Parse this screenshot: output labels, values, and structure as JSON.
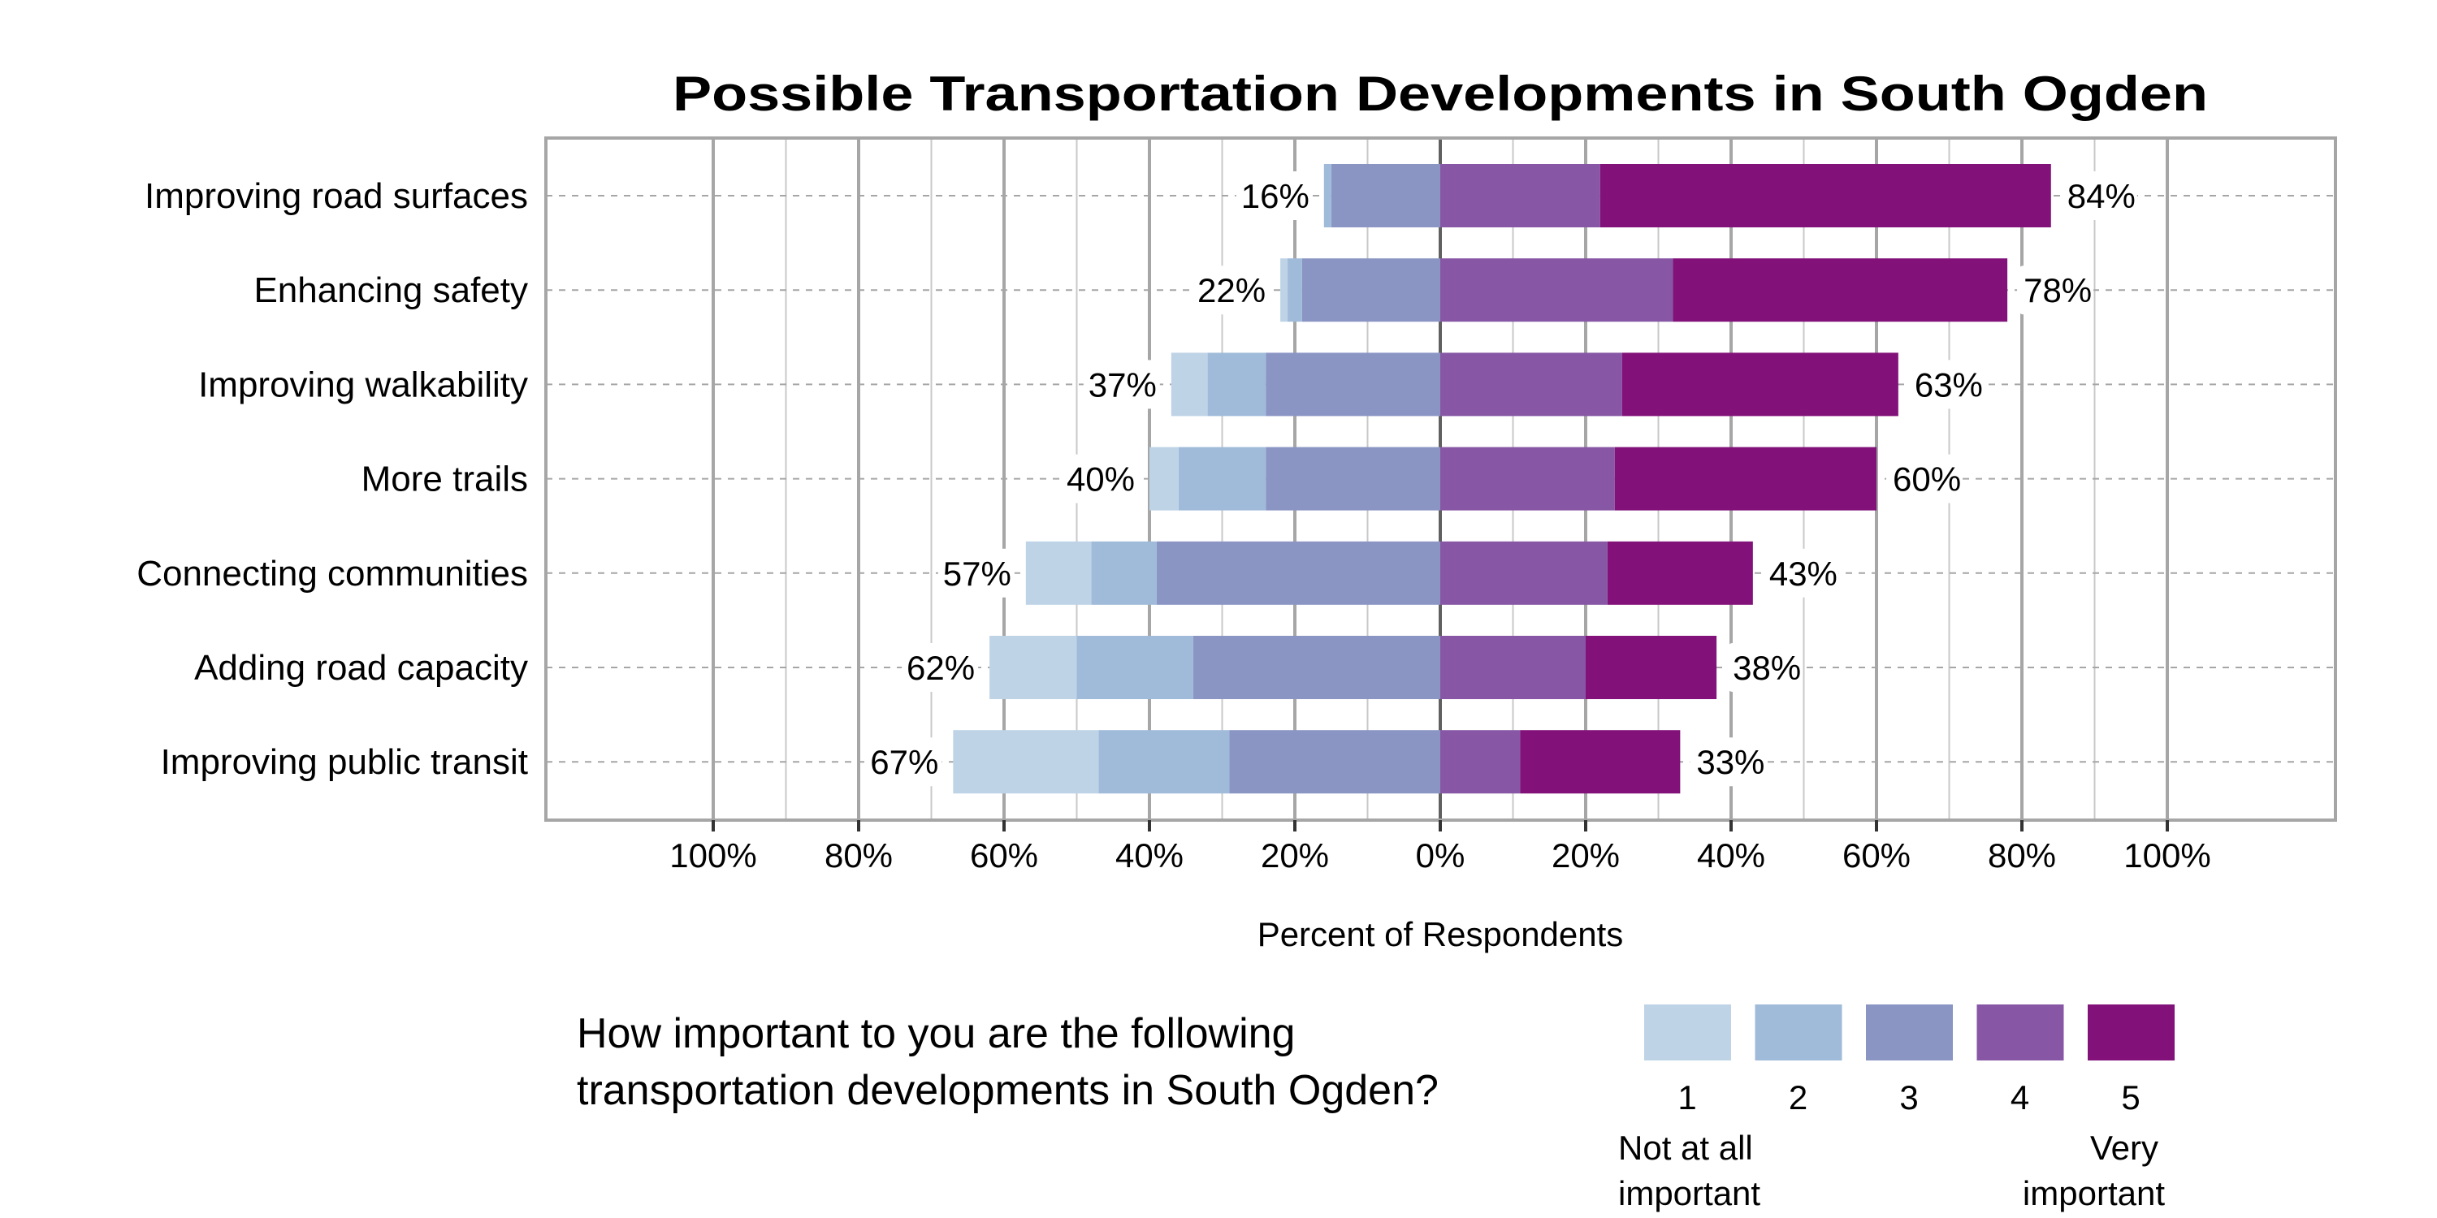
{
  "chart_data": {
    "type": "bar",
    "orientation": "horizontal",
    "stacking": "diverging",
    "title": "Possible Transportation Developments in South Ogden",
    "xlabel": "Percent of Respondents",
    "xlim": [
      -100,
      100
    ],
    "x_tick_labels": [
      "100%",
      "80%",
      "60%",
      "40%",
      "20%",
      "0%",
      "20%",
      "40%",
      "60%",
      "80%",
      "100%"
    ],
    "grid": true,
    "categories": [
      "Improving road surfaces",
      "Enhancing safety",
      "Improving walkability",
      "More trails",
      "Connecting communities",
      "Adding road capacity",
      "Improving public transit"
    ],
    "series": [
      {
        "name": "1",
        "side": "negative",
        "color": "#bed3e6",
        "values": [
          0,
          1,
          5,
          4,
          9,
          12,
          20
        ]
      },
      {
        "name": "2",
        "side": "negative",
        "color": "#a0bbd9",
        "values": [
          1,
          2,
          8,
          12,
          9,
          16,
          18
        ]
      },
      {
        "name": "3",
        "side": "negative",
        "color": "#8a95c4",
        "values": [
          15,
          19,
          24,
          24,
          39,
          34,
          29
        ]
      },
      {
        "name": "4",
        "side": "positive",
        "color": "#8757a5",
        "values": [
          22,
          32,
          25,
          24,
          23,
          20,
          11
        ]
      },
      {
        "name": "5",
        "side": "positive",
        "color": "#821279",
        "values": [
          62,
          46,
          38,
          36,
          20,
          18,
          22
        ]
      }
    ],
    "negative_totals": [
      "16%",
      "22%",
      "37%",
      "40%",
      "57%",
      "62%",
      "67%"
    ],
    "positive_totals": [
      "84%",
      "78%",
      "63%",
      "60%",
      "43%",
      "38%",
      "33%"
    ],
    "legend": {
      "question_lines": [
        "How important to you are the following",
        "transportation developments in South Ogden?"
      ],
      "low_label_lines": [
        "Not at all",
        "important"
      ],
      "high_label_lines": [
        "Very",
        "important"
      ],
      "placement": "bottom-right"
    }
  }
}
